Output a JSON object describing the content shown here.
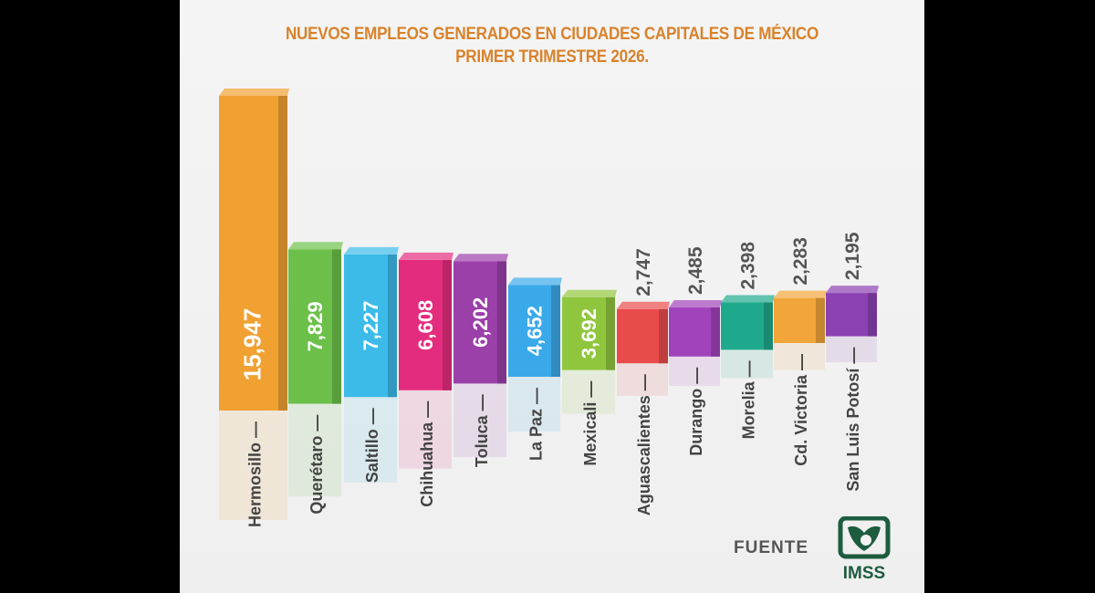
{
  "chart_data": {
    "type": "bar",
    "title": "NUEVOS EMPLEOS GENERADOS EN CIUDADES CAPITALES DE MÉXICO",
    "subtitle": "PRIMER TRIMESTRE 2026.",
    "categories": [
      "Hermosillo",
      "Querétaro",
      "Saltillo",
      "Chihuahua",
      "Toluca",
      "La Paz",
      "Mexicali",
      "Aguascalientes",
      "Durango",
      "Morelia",
      "Cd. Victoria",
      "San Luis Potosí"
    ],
    "values": [
      15947,
      7829,
      7227,
      6608,
      6202,
      4652,
      3692,
      2747,
      2485,
      2398,
      2283,
      2195
    ],
    "value_labels": [
      "15,947",
      "7,829",
      "7,227",
      "6,608",
      "6,202",
      "4,652",
      "3,692",
      "2,747",
      "2,485",
      "2,398",
      "2,283",
      "2,195"
    ],
    "colors": [
      "#f0a132",
      "#6cc04a",
      "#3cbbe9",
      "#e42c7e",
      "#9b3fa9",
      "#3aa9ea",
      "#8fc63d",
      "#e94b4b",
      "#a143bb",
      "#1fa98c",
      "#f2a53a",
      "#8b41b1"
    ],
    "xlabel": "",
    "ylabel": "",
    "grid": false,
    "legend": "none"
  },
  "source": {
    "label": "FUENTE",
    "logo_text": "IMSS",
    "logo_color": "#1d5c3f"
  }
}
